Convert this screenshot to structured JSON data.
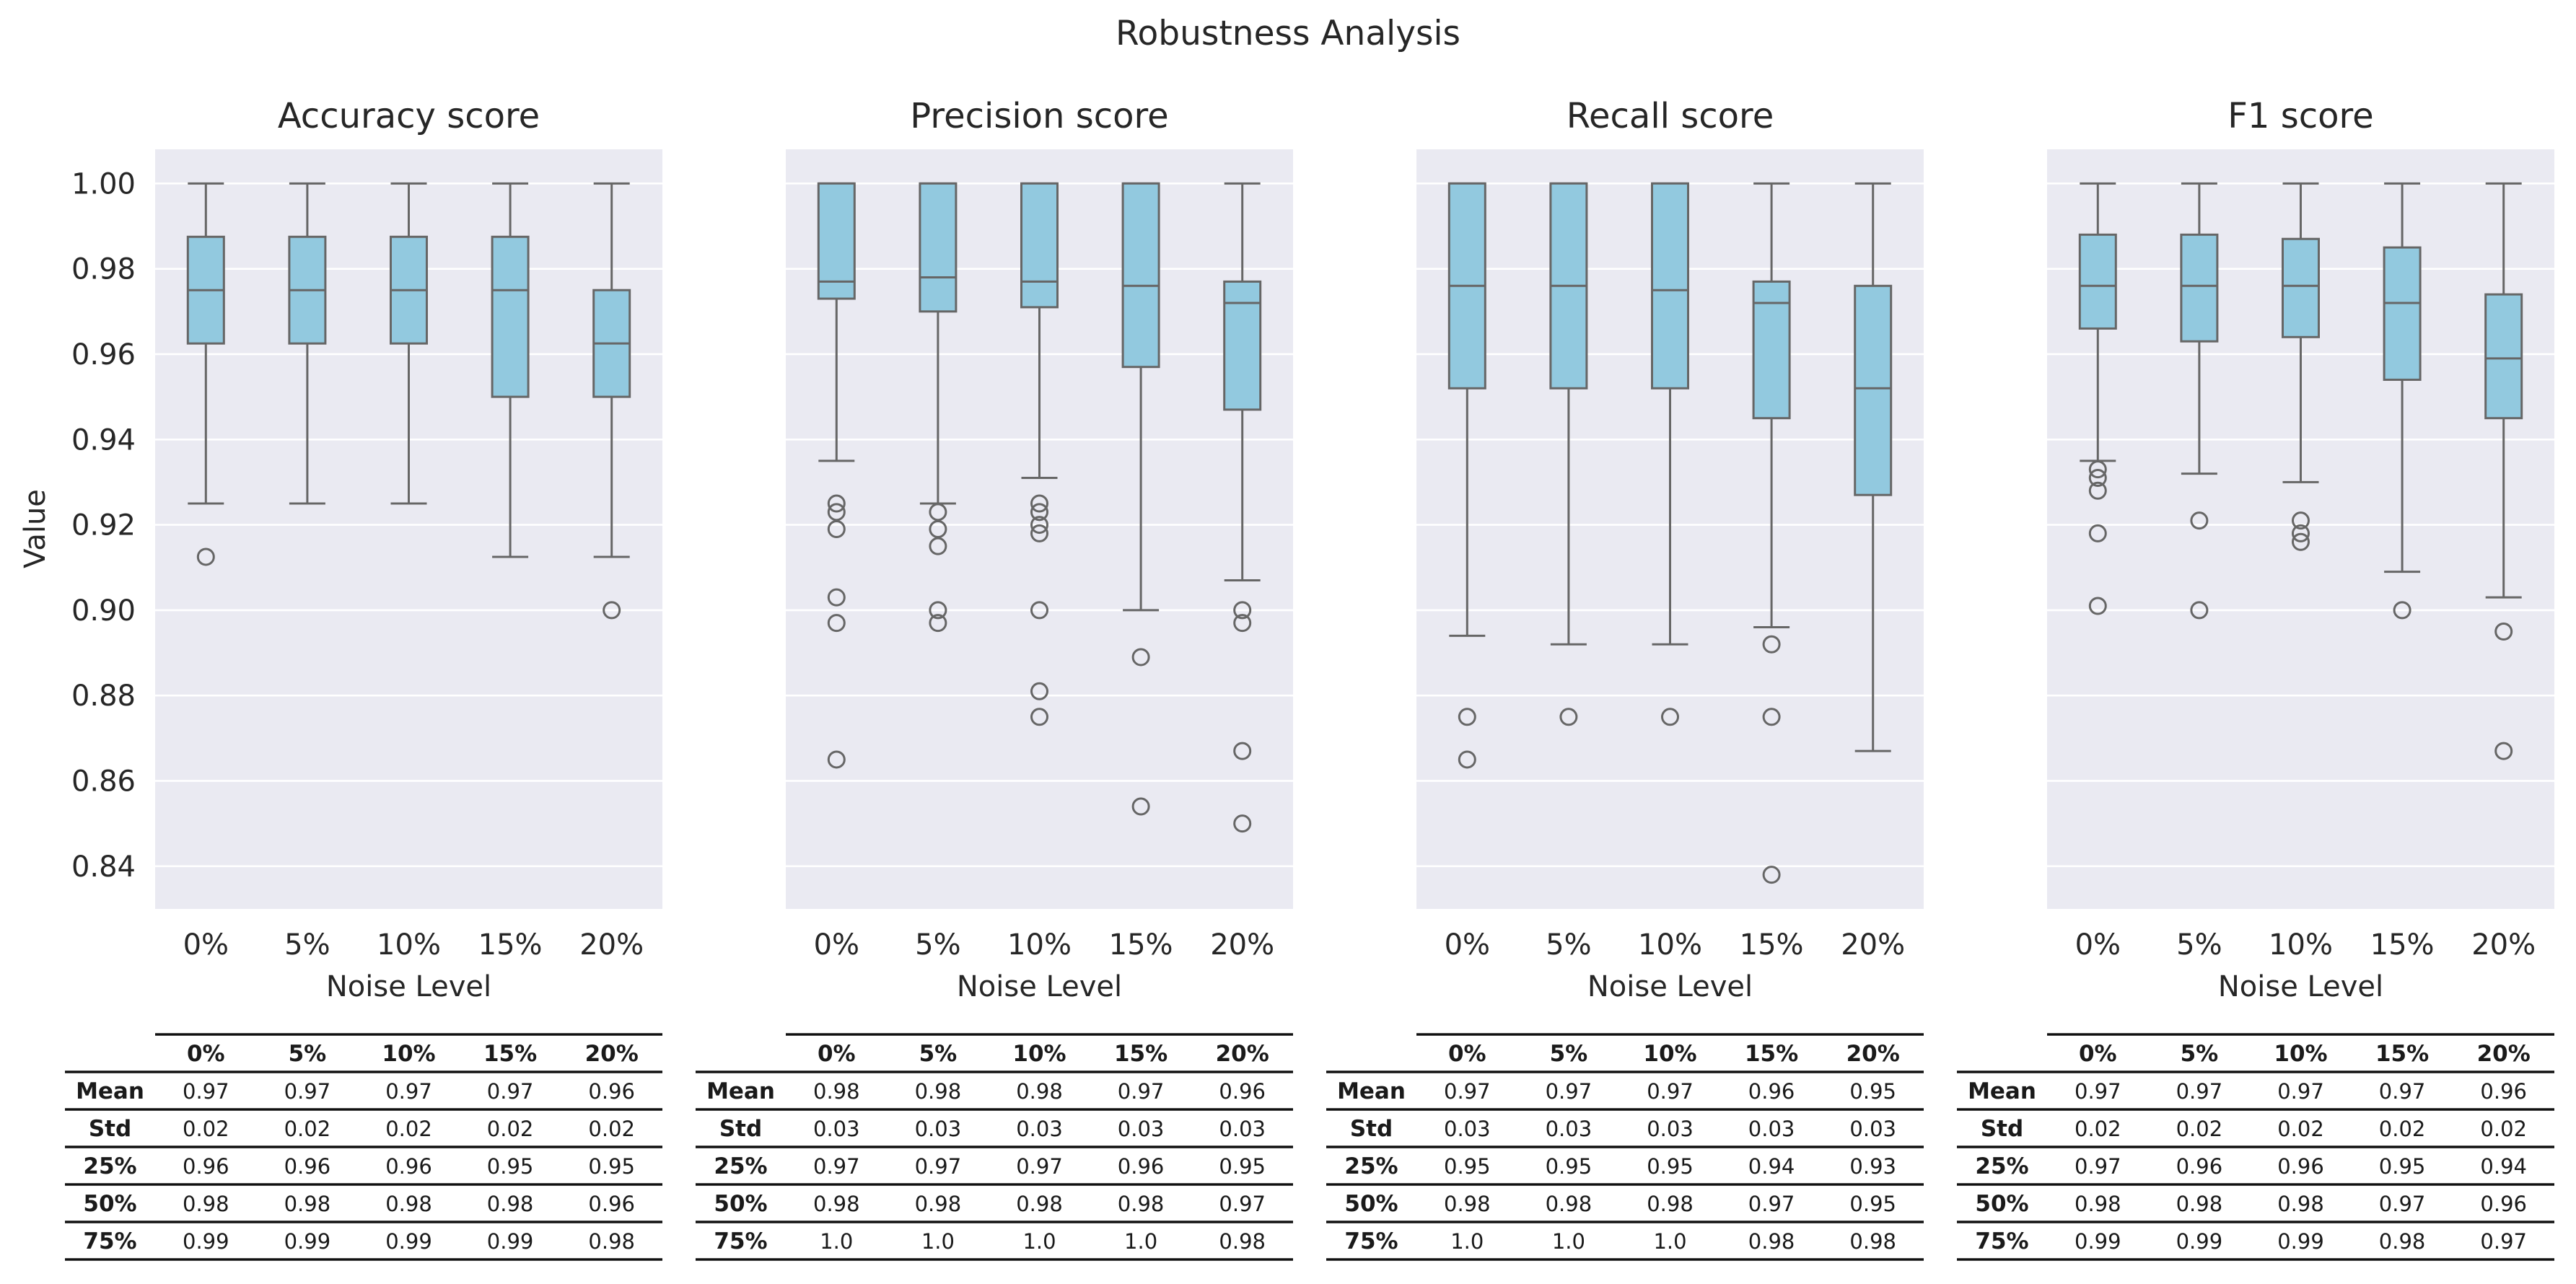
{
  "suptitle": "Robustness Analysis",
  "ylabel": "Value",
  "xlabel": "Noise Level",
  "categories": [
    "0%",
    "5%",
    "10%",
    "15%",
    "20%"
  ],
  "yticks": [
    "1.00",
    "0.98",
    "0.96",
    "0.94",
    "0.92",
    "0.90",
    "0.88",
    "0.86",
    "0.84"
  ],
  "colors": {
    "box_fill": "#92c9df",
    "box_edge": "#666666",
    "plot_bg": "#eaeaf2",
    "grid": "#ffffff"
  },
  "table_row_labels": [
    "Mean",
    "Std",
    "25%",
    "50%",
    "75%"
  ],
  "chart_data": [
    {
      "type": "box",
      "title": "Accuracy score",
      "ylim": [
        0.83,
        1.008
      ],
      "grid": true,
      "boxes": [
        {
          "q1": 0.9625,
          "median": 0.975,
          "q3": 0.9875,
          "whisker_low": 0.925,
          "whisker_high": 1.0,
          "outliers": [
            0.9125
          ]
        },
        {
          "q1": 0.9625,
          "median": 0.975,
          "q3": 0.9875,
          "whisker_low": 0.925,
          "whisker_high": 1.0,
          "outliers": []
        },
        {
          "q1": 0.9625,
          "median": 0.975,
          "q3": 0.9875,
          "whisker_low": 0.925,
          "whisker_high": 1.0,
          "outliers": []
        },
        {
          "q1": 0.95,
          "median": 0.975,
          "q3": 0.9875,
          "whisker_low": 0.9125,
          "whisker_high": 1.0,
          "outliers": []
        },
        {
          "q1": 0.95,
          "median": 0.9625,
          "q3": 0.975,
          "whisker_low": 0.9125,
          "whisker_high": 1.0,
          "outliers": [
            0.9
          ]
        }
      ],
      "table": [
        [
          "0.97",
          "0.97",
          "0.97",
          "0.97",
          "0.96"
        ],
        [
          "0.02",
          "0.02",
          "0.02",
          "0.02",
          "0.02"
        ],
        [
          "0.96",
          "0.96",
          "0.96",
          "0.95",
          "0.95"
        ],
        [
          "0.98",
          "0.98",
          "0.98",
          "0.98",
          "0.96"
        ],
        [
          "0.99",
          "0.99",
          "0.99",
          "0.99",
          "0.98"
        ]
      ]
    },
    {
      "type": "box",
      "title": "Precision score",
      "ylim": [
        0.83,
        1.008
      ],
      "grid": true,
      "boxes": [
        {
          "q1": 0.973,
          "median": 0.977,
          "q3": 1.0,
          "whisker_low": 0.935,
          "whisker_high": 1.0,
          "outliers": [
            0.925,
            0.923,
            0.919,
            0.903,
            0.897,
            0.865
          ]
        },
        {
          "q1": 0.97,
          "median": 0.978,
          "q3": 1.0,
          "whisker_low": 0.925,
          "whisker_high": 1.0,
          "outliers": [
            0.923,
            0.919,
            0.915,
            0.9,
            0.897
          ]
        },
        {
          "q1": 0.971,
          "median": 0.977,
          "q3": 1.0,
          "whisker_low": 0.931,
          "whisker_high": 1.0,
          "outliers": [
            0.925,
            0.923,
            0.92,
            0.918,
            0.9,
            0.881,
            0.875
          ]
        },
        {
          "q1": 0.957,
          "median": 0.976,
          "q3": 1.0,
          "whisker_low": 0.9,
          "whisker_high": 1.0,
          "outliers": [
            0.889,
            0.854
          ]
        },
        {
          "q1": 0.947,
          "median": 0.972,
          "q3": 0.977,
          "whisker_low": 0.907,
          "whisker_high": 1.0,
          "outliers": [
            0.9,
            0.897,
            0.867,
            0.85
          ]
        }
      ],
      "table": [
        [
          "0.98",
          "0.98",
          "0.98",
          "0.97",
          "0.96"
        ],
        [
          "0.03",
          "0.03",
          "0.03",
          "0.03",
          "0.03"
        ],
        [
          "0.97",
          "0.97",
          "0.97",
          "0.96",
          "0.95"
        ],
        [
          "0.98",
          "0.98",
          "0.98",
          "0.98",
          "0.97"
        ],
        [
          "1.0",
          "1.0",
          "1.0",
          "1.0",
          "0.98"
        ]
      ]
    },
    {
      "type": "box",
      "title": "Recall score",
      "ylim": [
        0.83,
        1.008
      ],
      "grid": true,
      "boxes": [
        {
          "q1": 0.952,
          "median": 0.976,
          "q3": 1.0,
          "whisker_low": 0.894,
          "whisker_high": 1.0,
          "outliers": [
            0.875,
            0.865
          ]
        },
        {
          "q1": 0.952,
          "median": 0.976,
          "q3": 1.0,
          "whisker_low": 0.892,
          "whisker_high": 1.0,
          "outliers": [
            0.875
          ]
        },
        {
          "q1": 0.952,
          "median": 0.975,
          "q3": 1.0,
          "whisker_low": 0.892,
          "whisker_high": 1.0,
          "outliers": [
            0.875
          ]
        },
        {
          "q1": 0.945,
          "median": 0.972,
          "q3": 0.977,
          "whisker_low": 0.896,
          "whisker_high": 1.0,
          "outliers": [
            0.892,
            0.875,
            0.838
          ]
        },
        {
          "q1": 0.927,
          "median": 0.952,
          "q3": 0.976,
          "whisker_low": 0.867,
          "whisker_high": 1.0,
          "outliers": []
        }
      ],
      "table": [
        [
          "0.97",
          "0.97",
          "0.97",
          "0.96",
          "0.95"
        ],
        [
          "0.03",
          "0.03",
          "0.03",
          "0.03",
          "0.03"
        ],
        [
          "0.95",
          "0.95",
          "0.95",
          "0.94",
          "0.93"
        ],
        [
          "0.98",
          "0.98",
          "0.98",
          "0.97",
          "0.95"
        ],
        [
          "1.0",
          "1.0",
          "1.0",
          "0.98",
          "0.98"
        ]
      ]
    },
    {
      "type": "box",
      "title": "F1 score",
      "ylim": [
        0.83,
        1.008
      ],
      "grid": true,
      "boxes": [
        {
          "q1": 0.966,
          "median": 0.976,
          "q3": 0.988,
          "whisker_low": 0.935,
          "whisker_high": 1.0,
          "outliers": [
            0.933,
            0.931,
            0.928,
            0.918,
            0.901
          ]
        },
        {
          "q1": 0.963,
          "median": 0.976,
          "q3": 0.988,
          "whisker_low": 0.932,
          "whisker_high": 1.0,
          "outliers": [
            0.921,
            0.9
          ]
        },
        {
          "q1": 0.964,
          "median": 0.976,
          "q3": 0.987,
          "whisker_low": 0.93,
          "whisker_high": 1.0,
          "outliers": [
            0.921,
            0.918,
            0.916
          ]
        },
        {
          "q1": 0.954,
          "median": 0.972,
          "q3": 0.985,
          "whisker_low": 0.909,
          "whisker_high": 1.0,
          "outliers": [
            0.9
          ]
        },
        {
          "q1": 0.945,
          "median": 0.959,
          "q3": 0.974,
          "whisker_low": 0.903,
          "whisker_high": 1.0,
          "outliers": [
            0.895,
            0.867
          ]
        }
      ],
      "table": [
        [
          "0.97",
          "0.97",
          "0.97",
          "0.97",
          "0.96"
        ],
        [
          "0.02",
          "0.02",
          "0.02",
          "0.02",
          "0.02"
        ],
        [
          "0.97",
          "0.96",
          "0.96",
          "0.95",
          "0.94"
        ],
        [
          "0.98",
          "0.98",
          "0.98",
          "0.97",
          "0.96"
        ],
        [
          "0.99",
          "0.99",
          "0.99",
          "0.98",
          "0.97"
        ]
      ]
    }
  ]
}
